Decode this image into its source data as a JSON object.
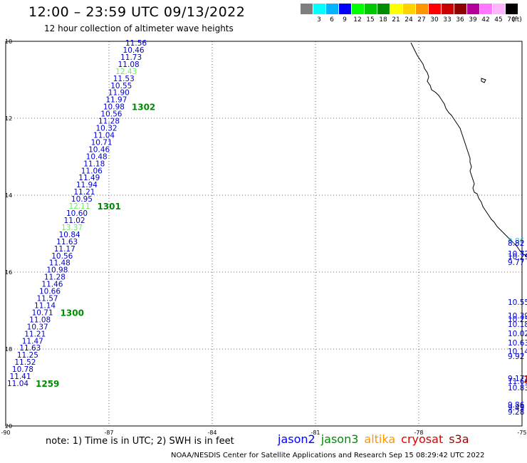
{
  "header": {
    "title": "12:00 – 23:59 UTC 09/13/2022",
    "subtitle": "12 hour collection of altimeter wave heights"
  },
  "colorbar": {
    "unit": "(ft)",
    "bins": [
      {
        "color": "#7f7f7f",
        "label": ""
      },
      {
        "color": "#00ffff",
        "label": "3"
      },
      {
        "color": "#00b4ff",
        "label": "6"
      },
      {
        "color": "#0000ff",
        "label": "9"
      },
      {
        "color": "#00ff00",
        "label": "12"
      },
      {
        "color": "#00c800",
        "label": "15"
      },
      {
        "color": "#008c00",
        "label": "18"
      },
      {
        "color": "#ffff00",
        "label": "21"
      },
      {
        "color": "#ffd200",
        "label": "24"
      },
      {
        "color": "#ff9600",
        "label": "27"
      },
      {
        "color": "#ff0000",
        "label": "30"
      },
      {
        "color": "#c80000",
        "label": "33"
      },
      {
        "color": "#8c0000",
        "label": "36"
      },
      {
        "color": "#b40096",
        "label": "39"
      },
      {
        "color": "#ff78ff",
        "label": "42"
      },
      {
        "color": "#ffb4ff",
        "label": "45"
      },
      {
        "color": "#000000",
        "label": "70"
      }
    ]
  },
  "axes": {
    "lon_ticks": [
      "-90",
      "-87",
      "-84",
      "-81",
      "-78",
      "-75"
    ],
    "lat_ticks": [
      "10",
      "12",
      "14",
      "16",
      "18",
      "20"
    ]
  },
  "track": {
    "color_default": "#0000cc",
    "color_highlight": "#66ee66",
    "values": [
      {
        "v": "11.56",
        "h": false
      },
      {
        "v": "10.46",
        "h": false
      },
      {
        "v": "11.73",
        "h": false
      },
      {
        "v": "11.08",
        "h": false
      },
      {
        "v": "12.43",
        "h": true
      },
      {
        "v": "11.53",
        "h": false
      },
      {
        "v": "10.55",
        "h": false
      },
      {
        "v": "11.90",
        "h": false
      },
      {
        "v": "11.97",
        "h": false
      },
      {
        "v": "10.98",
        "h": false
      },
      {
        "v": "10.56",
        "h": false
      },
      {
        "v": "11.28",
        "h": false
      },
      {
        "v": "10.32",
        "h": false
      },
      {
        "v": "11.04",
        "h": false
      },
      {
        "v": "10.71",
        "h": false
      },
      {
        "v": "10.46",
        "h": false
      },
      {
        "v": "10.48",
        "h": false
      },
      {
        "v": "11.18",
        "h": false
      },
      {
        "v": "11.06",
        "h": false
      },
      {
        "v": "11.49",
        "h": false
      },
      {
        "v": "11.94",
        "h": false
      },
      {
        "v": "11.21",
        "h": false
      },
      {
        "v": "10.95",
        "h": false
      },
      {
        "v": "12.11",
        "h": true
      },
      {
        "v": "10.60",
        "h": false
      },
      {
        "v": "11.02",
        "h": false
      },
      {
        "v": "13.37",
        "h": true
      },
      {
        "v": "10.84",
        "h": false
      },
      {
        "v": "11.63",
        "h": false
      },
      {
        "v": "11.17",
        "h": false
      },
      {
        "v": "10.56",
        "h": false
      },
      {
        "v": "11.48",
        "h": false
      },
      {
        "v": "10.98",
        "h": false
      },
      {
        "v": "11.28",
        "h": false
      },
      {
        "v": "11.46",
        "h": false
      },
      {
        "v": "10.66",
        "h": false
      },
      {
        "v": "11.57",
        "h": false
      },
      {
        "v": "11.14",
        "h": false
      },
      {
        "v": "10.71",
        "h": false
      },
      {
        "v": "11.08",
        "h": false
      },
      {
        "v": "10.37",
        "h": false
      },
      {
        "v": "11.21",
        "h": false
      },
      {
        "v": "11.47",
        "h": false
      },
      {
        "v": "11.63",
        "h": false
      },
      {
        "v": "11.25",
        "h": false
      },
      {
        "v": "11.52",
        "h": false
      },
      {
        "v": "10.78",
        "h": false
      },
      {
        "v": "11.41",
        "h": false
      },
      {
        "v": "11.04",
        "h": false
      }
    ]
  },
  "time_labels": [
    {
      "t": "1302",
      "idx": 9
    },
    {
      "t": "1301",
      "idx": 23
    },
    {
      "t": "1300",
      "idx": 38
    },
    {
      "t": "1259",
      "idx": 48
    }
  ],
  "east_values": [
    {
      "v": "9.86",
      "c": "#55bbdd"
    },
    {
      "v": "8.82",
      "c": "#0000cc"
    },
    {
      "v": "10.72",
      "c": "#0000cc"
    },
    {
      "v": "10.29",
      "c": "#0000cc"
    },
    {
      "v": "9.77",
      "c": "#0000cc"
    },
    {
      "v": "10.55",
      "c": "#0000cc"
    },
    {
      "v": "10.39",
      "c": "#0000cc"
    },
    {
      "v": "10.25",
      "c": "#0000cc"
    },
    {
      "v": "10.18",
      "c": "#0000cc"
    },
    {
      "v": "10.02",
      "c": "#0000cc"
    },
    {
      "v": "10.63",
      "c": "#0000cc"
    },
    {
      "v": "10.14",
      "c": "#0000cc"
    },
    {
      "v": "9.92",
      "c": "#0000cc"
    },
    {
      "v": "9.17",
      "c": "#0000cc"
    },
    {
      "v": "11.66",
      "c": "#0000cc"
    },
    {
      "v": "10.83",
      "c": "#0000cc"
    },
    {
      "v": "9.86",
      "c": "#0000cc"
    },
    {
      "v": "9.49",
      "c": "#0000cc"
    },
    {
      "v": "9.28",
      "c": "#0000cc"
    }
  ],
  "east_time_label": "1",
  "note": "note: 1) Time is in UTC; 2) SWH is in feet",
  "missions": [
    {
      "name": "jason2",
      "color": "#0000ff"
    },
    {
      "name": "jason3",
      "color": "#008c00"
    },
    {
      "name": "altika",
      "color": "#ff9600"
    },
    {
      "name": "cryosat",
      "color": "#dd0000"
    },
    {
      "name": "s3a",
      "color": "#990000"
    }
  ],
  "footer": "NOAA/NESDIS Center for Satellite Applications and Research   Sep 15 08:29:42 UTC 2022"
}
